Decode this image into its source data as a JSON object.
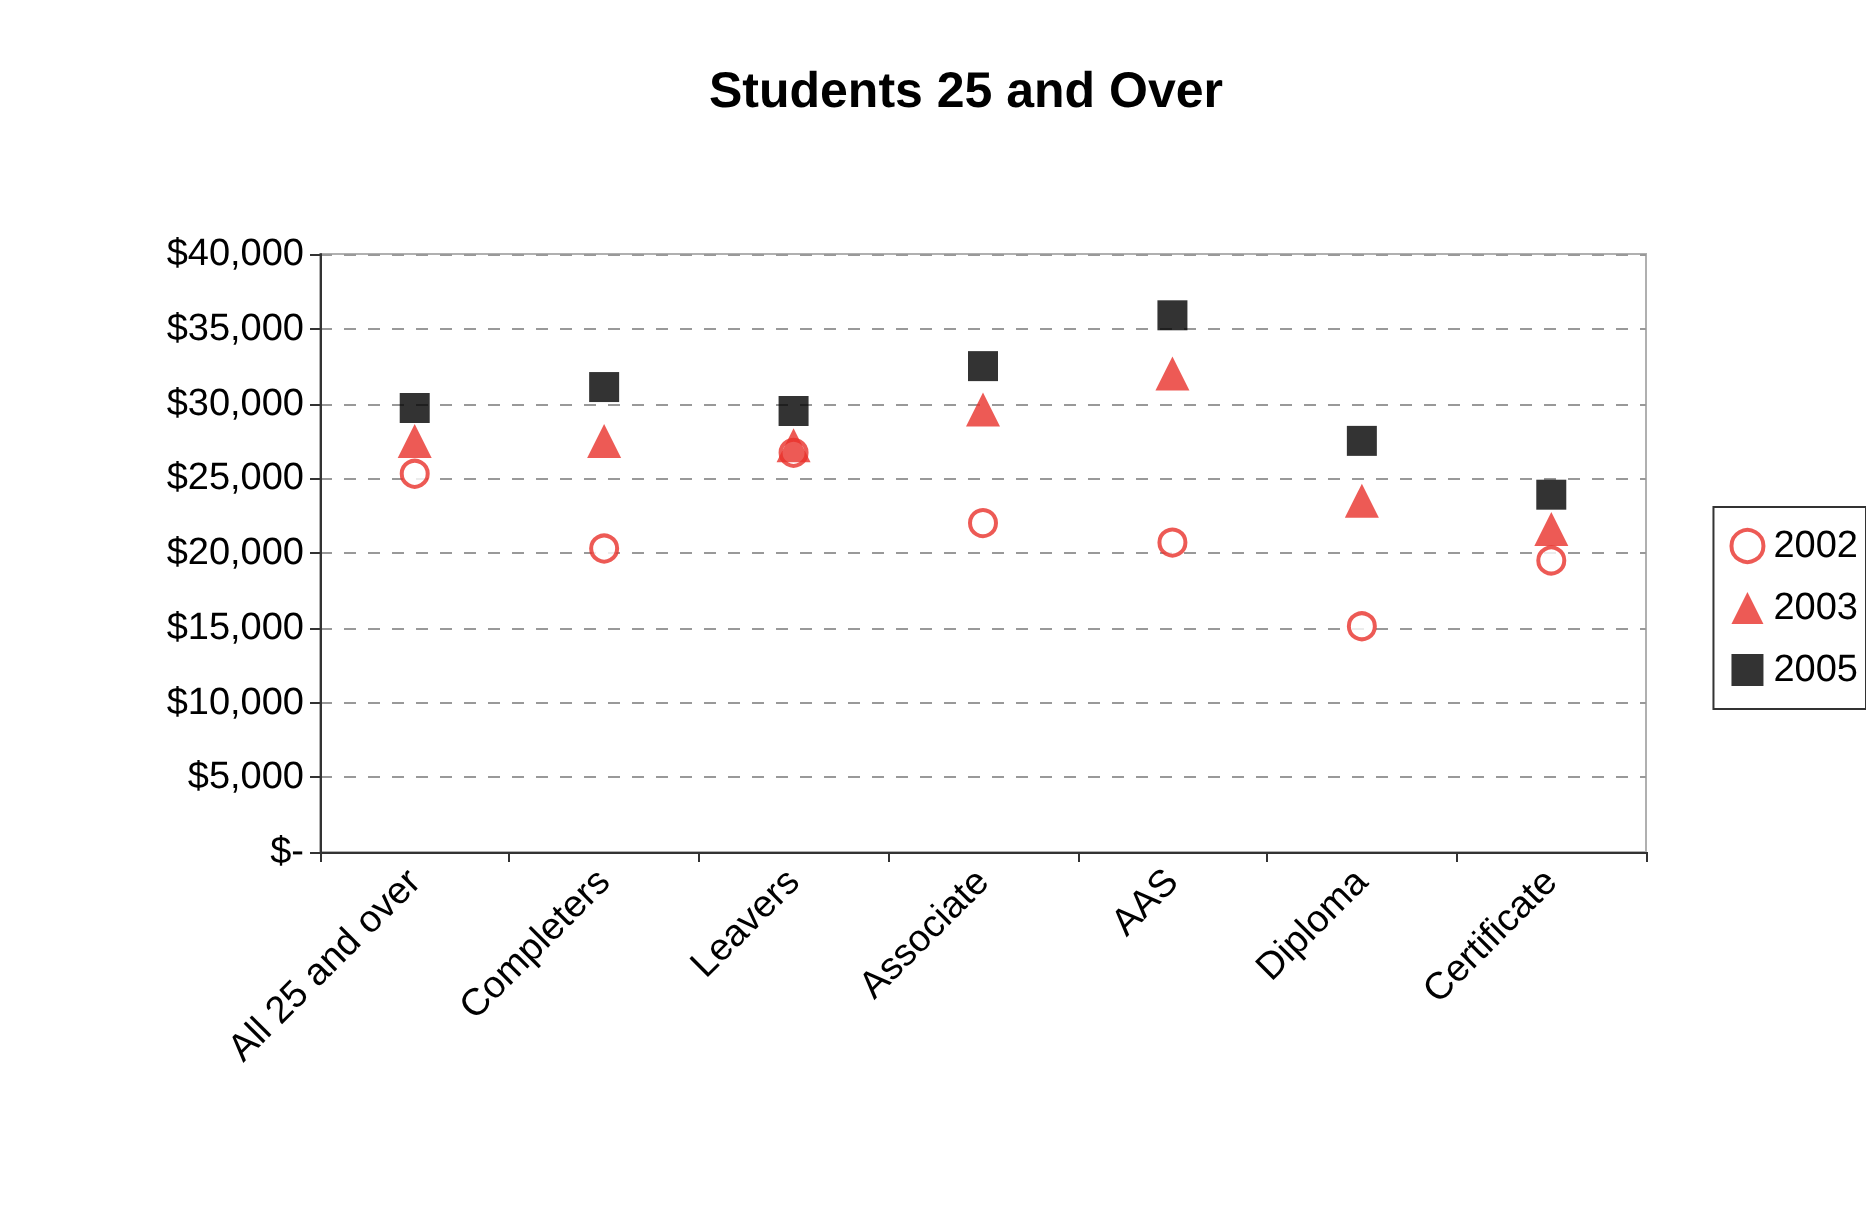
{
  "chart_data": {
    "type": "scatter",
    "title": "Students 25 and Over",
    "categories": [
      "All 25 and over",
      "Completers",
      "Leavers",
      "Associate",
      "AAS",
      "Diploma",
      "Certificate"
    ],
    "series": [
      {
        "name": "2002",
        "color": "#e8312a",
        "marker": "circle",
        "values": [
          25300,
          20300,
          26700,
          22000,
          20700,
          15100,
          19500
        ]
      },
      {
        "name": "2003",
        "color": "#e8312a",
        "marker": "triangle",
        "values": [
          27500,
          27500,
          27200,
          29600,
          32000,
          23500,
          21600
        ]
      },
      {
        "name": "2005",
        "color": "#000000",
        "marker": "square",
        "values": [
          29700,
          31100,
          29500,
          32500,
          35900,
          27500,
          23900
        ]
      }
    ],
    "ylim": [
      0,
      40000
    ],
    "yticks": [
      {
        "value": 0,
        "label": "$-"
      },
      {
        "value": 5000,
        "label": "$5,000"
      },
      {
        "value": 10000,
        "label": "$10,000"
      },
      {
        "value": 15000,
        "label": "$15,000"
      },
      {
        "value": 20000,
        "label": "$20,000"
      },
      {
        "value": 25000,
        "label": "$25,000"
      },
      {
        "value": 30000,
        "label": "$30,000"
      },
      {
        "value": 35000,
        "label": "$35,000"
      },
      {
        "value": 40000,
        "label": "$40,000"
      }
    ],
    "grid": "y",
    "legend": "right"
  }
}
